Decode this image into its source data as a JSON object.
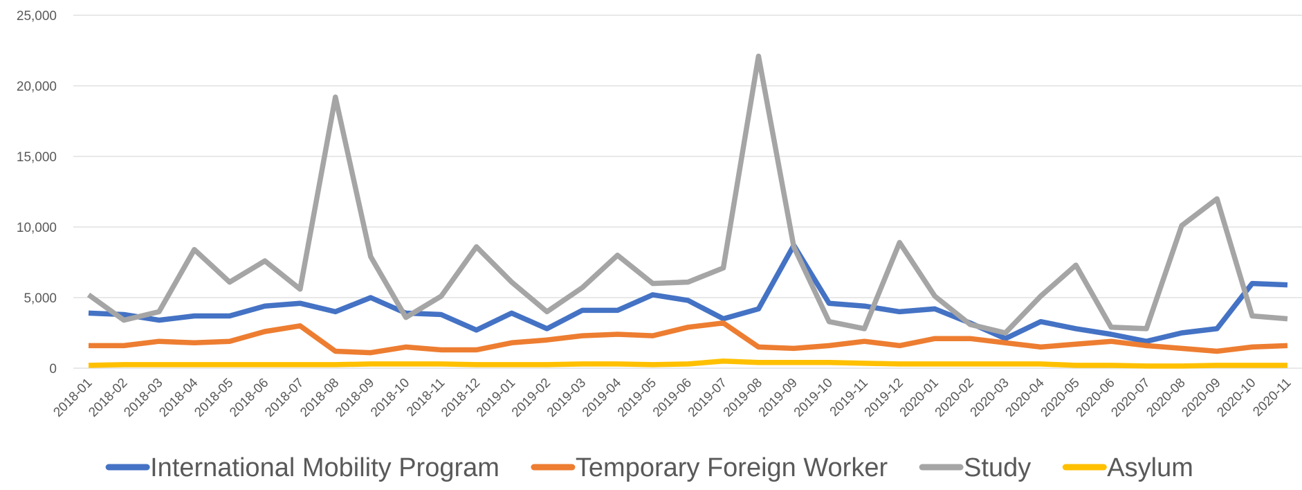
{
  "chart_data": {
    "type": "line",
    "categories": [
      "2018-01",
      "2018-02",
      "2018-03",
      "2018-04",
      "2018-05",
      "2018-06",
      "2018-07",
      "2018-08",
      "2018-09",
      "2018-10",
      "2018-11",
      "2018-12",
      "2019-01",
      "2019-02",
      "2019-03",
      "2019-04",
      "2019-05",
      "2019-06",
      "2019-07",
      "2019-08",
      "2019-09",
      "2019-10",
      "2019-11",
      "2019-12",
      "2020-01",
      "2020-02",
      "2020-03",
      "2020-04",
      "2020-05",
      "2020-06",
      "2020-07",
      "2020-08",
      "2020-09",
      "2020-10",
      "2020-11"
    ],
    "series": [
      {
        "name": "International Mobility Program",
        "color": "#4472c4",
        "values": [
          3900,
          3800,
          3400,
          3700,
          3700,
          4400,
          4600,
          4000,
          5000,
          3900,
          3800,
          2700,
          3900,
          2800,
          4100,
          4100,
          5200,
          4800,
          3500,
          4200,
          8700,
          4600,
          4400,
          4000,
          4200,
          3200,
          2100,
          3300,
          2800,
          2400,
          1900,
          2500,
          2800,
          6000,
          5900
        ]
      },
      {
        "name": "Temporary Foreign Worker",
        "color": "#ed7d31",
        "values": [
          1600,
          1600,
          1900,
          1800,
          1900,
          2600,
          3000,
          1200,
          1100,
          1500,
          1300,
          1300,
          1800,
          2000,
          2300,
          2400,
          2300,
          2900,
          3200,
          1500,
          1400,
          1600,
          1900,
          1600,
          2100,
          2100,
          1800,
          1500,
          1700,
          1900,
          1600,
          1400,
          1200,
          1500,
          1600
        ]
      },
      {
        "name": "Study",
        "color": "#a5a5a5",
        "values": [
          5200,
          3400,
          4000,
          8400,
          6100,
          7600,
          5600,
          19200,
          7900,
          3600,
          5100,
          8600,
          6100,
          4000,
          5700,
          8000,
          6000,
          6100,
          7100,
          22100,
          8600,
          3300,
          2800,
          8900,
          5100,
          3100,
          2500,
          5100,
          7300,
          2900,
          2800,
          10100,
          12000,
          3700,
          3500
        ]
      },
      {
        "name": "Asylum",
        "color": "#ffc000",
        "values": [
          200,
          250,
          250,
          250,
          250,
          250,
          250,
          250,
          300,
          300,
          300,
          250,
          250,
          250,
          300,
          300,
          250,
          300,
          500,
          400,
          400,
          400,
          350,
          300,
          300,
          300,
          300,
          300,
          200,
          200,
          150,
          150,
          200,
          200,
          200
        ]
      }
    ],
    "ylim": [
      0,
      25000
    ],
    "yticks": [
      0,
      {
        "value": 5000,
        "label": "5,000"
      },
      {
        "value": 10000,
        "label": "10,000"
      },
      {
        "value": 15000,
        "label": "15,000"
      },
      {
        "value": 20000,
        "label": "20,000"
      },
      {
        "value": 25000,
        "label": "25,000"
      }
    ],
    "grid": true,
    "legend": "bottom"
  }
}
